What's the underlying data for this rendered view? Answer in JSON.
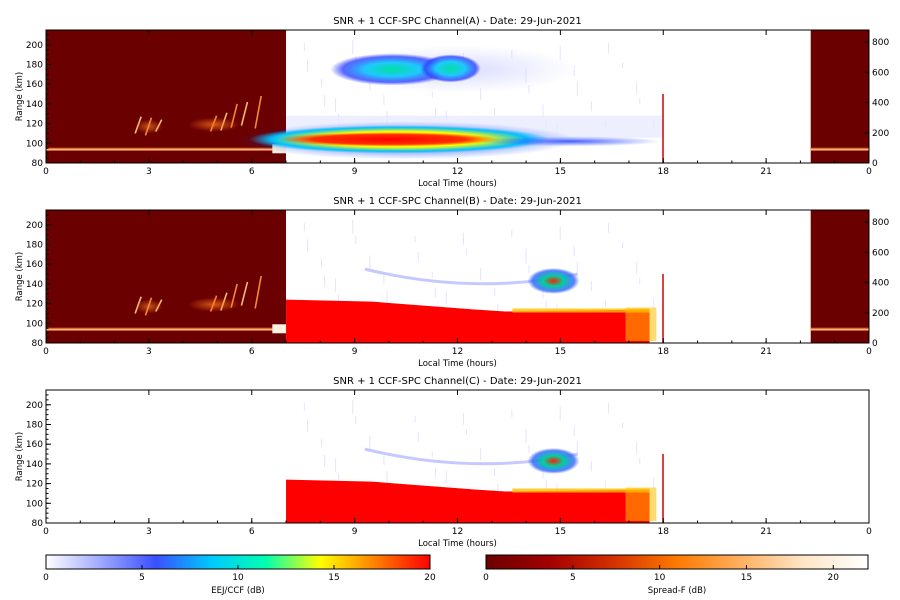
{
  "chart_data": [
    {
      "type": "heatmap",
      "title": "SNR + 1 CCF-SPC Channel(A) - Date: 29-Jun-2021",
      "xlabel": "Local Time (hours)",
      "ylabel": "Range (km)",
      "xlim": [
        0,
        24
      ],
      "ylim": [
        80,
        215
      ],
      "x_ticks": [
        "0",
        "3",
        "6",
        "9",
        "12",
        "15",
        "18",
        "21",
        "0"
      ],
      "y_ticks": [
        "80",
        "100",
        "120",
        "140",
        "160",
        "180",
        "200"
      ],
      "right_axis_ticks": [
        "0",
        "200",
        "400",
        "600",
        "800"
      ],
      "right_axis_range": [
        0,
        880
      ],
      "regions": [
        {
          "name": "spread-f-night-early",
          "colormap": "spreadf",
          "x": [
            0,
            7
          ],
          "y_right": [
            0,
            880
          ]
        },
        {
          "name": "eej-ccf-daytime",
          "colormap": "eej",
          "x": [
            7,
            18
          ],
          "y": [
            80,
            215
          ]
        },
        {
          "name": "spread-f-night-late",
          "colormap": "spreadf",
          "x": [
            22.3,
            24
          ],
          "y_right": [
            0,
            880
          ]
        }
      ]
    },
    {
      "type": "heatmap",
      "title": "SNR + 1 CCF-SPC Channel(B) - Date: 29-Jun-2021",
      "xlabel": "Local Time (hours)",
      "ylabel": "Range (km)",
      "xlim": [
        0,
        24
      ],
      "ylim": [
        80,
        215
      ],
      "x_ticks": [
        "0",
        "3",
        "6",
        "9",
        "12",
        "15",
        "18",
        "21",
        "0"
      ],
      "y_ticks": [
        "80",
        "100",
        "120",
        "140",
        "160",
        "180",
        "200"
      ],
      "right_axis_ticks": [
        "0",
        "200",
        "400",
        "600",
        "800"
      ],
      "right_axis_range": [
        0,
        880
      ],
      "regions": [
        {
          "name": "spread-f-night-early",
          "colormap": "spreadf",
          "x": [
            0,
            7
          ],
          "y_right": [
            0,
            880
          ]
        },
        {
          "name": "eej-ccf-daytime",
          "colormap": "eej",
          "x": [
            7,
            18
          ],
          "y": [
            80,
            215
          ]
        },
        {
          "name": "spread-f-night-late",
          "colormap": "spreadf",
          "x": [
            22.3,
            24
          ],
          "y_right": [
            0,
            880
          ]
        }
      ]
    },
    {
      "type": "heatmap",
      "title": "SNR + 1 CCF-SPC Channel(C) - Date: 29-Jun-2021",
      "xlabel": "Local Time (hours)",
      "ylabel": "Range (km)",
      "xlim": [
        0,
        24
      ],
      "ylim": [
        80,
        215
      ],
      "x_ticks": [
        "0",
        "3",
        "6",
        "9",
        "12",
        "15",
        "18",
        "21",
        "0"
      ],
      "y_ticks": [
        "80",
        "100",
        "120",
        "140",
        "160",
        "180",
        "200"
      ],
      "right_axis_ticks": [],
      "regions": [
        {
          "name": "eej-ccf-daytime",
          "colormap": "eej",
          "x": [
            7,
            18
          ],
          "y": [
            80,
            215
          ]
        }
      ]
    }
  ],
  "colorbars": [
    {
      "label": "EEJ/CCF (dB)",
      "ticks": [
        "0",
        "5",
        "10",
        "15",
        "20"
      ],
      "range": [
        0,
        20
      ],
      "colors": [
        "#ffffff",
        "#9fa8ff",
        "#3a50ff",
        "#00c8ff",
        "#00ffb0",
        "#ffff00",
        "#ff8000",
        "#ff0000"
      ]
    },
    {
      "label": "Spread-F (dB)",
      "ticks": [
        "0",
        "5",
        "10",
        "15",
        "20"
      ],
      "range": [
        0,
        22
      ],
      "colors": [
        "#6b0000",
        "#a30000",
        "#d43000",
        "#ff7a00",
        "#ffb060",
        "#ffe6c8",
        "#ffffff"
      ]
    }
  ]
}
